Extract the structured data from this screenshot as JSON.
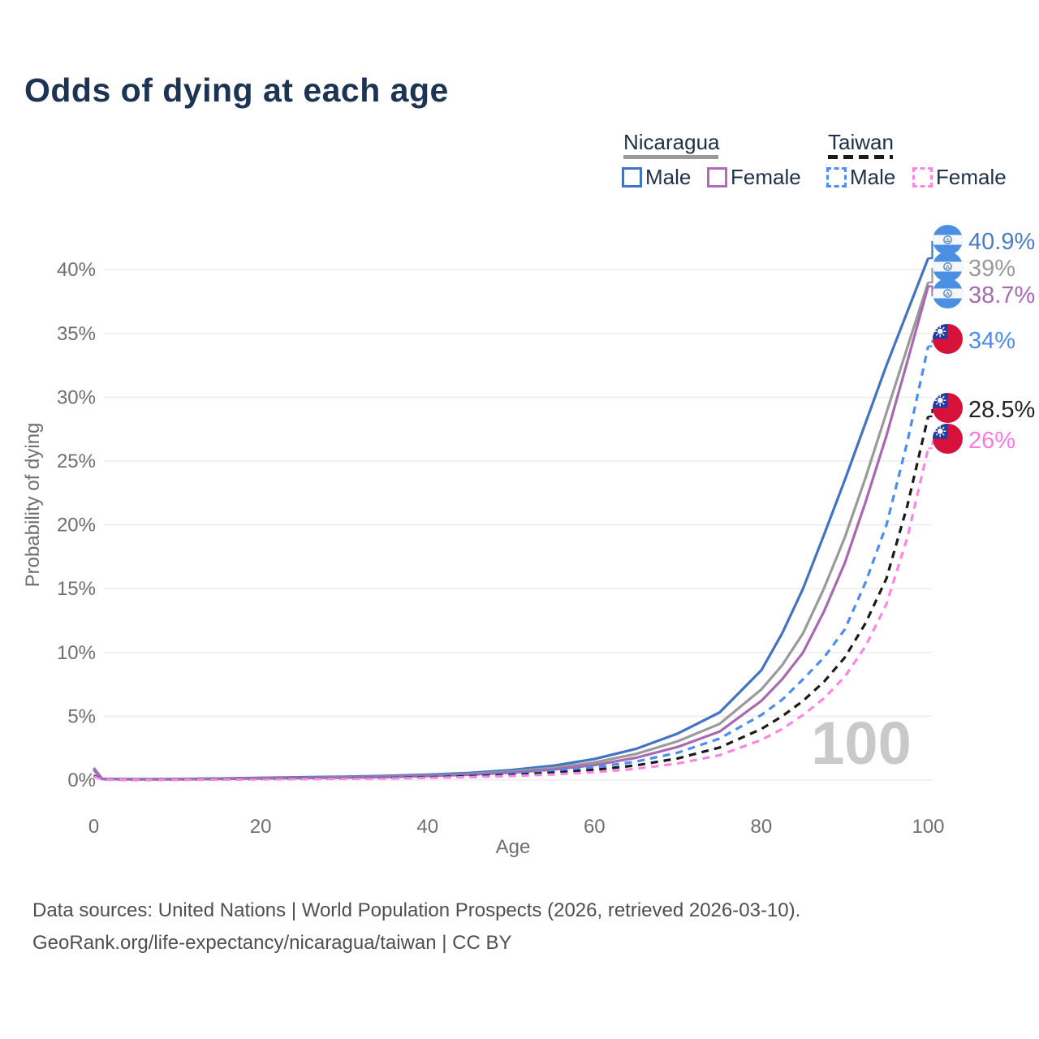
{
  "title": "Odds of dying at each age",
  "legend": {
    "groups": [
      {
        "name": "Nicaragua",
        "line_style": "solid",
        "line_color": "#9a9a9a",
        "items": [
          {
            "label": "Male",
            "color": "#4273c4"
          },
          {
            "label": "Female",
            "color": "#b06ab8"
          }
        ]
      },
      {
        "name": "Taiwan",
        "line_style": "dashed",
        "line_color": "#1a1a1a",
        "items": [
          {
            "label": "Male",
            "color": "#4b8df0"
          },
          {
            "label": "Female",
            "color": "#ff85e4"
          }
        ]
      }
    ]
  },
  "chart_data": {
    "type": "line",
    "title": "Odds of dying at each age",
    "xlabel": "Age",
    "ylabel": "Probability of dying",
    "watermark": "100",
    "grid": "horizontal",
    "legend_position": "top-right",
    "xlim": [
      0,
      100
    ],
    "ylim_pct": [
      0,
      43
    ],
    "x_ticks": [
      0,
      20,
      40,
      60,
      80,
      100
    ],
    "y_ticks": [
      {
        "value": 0,
        "label": "0%"
      },
      {
        "value": 5,
        "label": "5%"
      },
      {
        "value": 10,
        "label": "10%"
      },
      {
        "value": 15,
        "label": "15%"
      },
      {
        "value": 20,
        "label": "20%"
      },
      {
        "value": 25,
        "label": "25%"
      },
      {
        "value": 30,
        "label": "30%"
      },
      {
        "value": 35,
        "label": "35%"
      },
      {
        "value": 40,
        "label": "40%"
      }
    ],
    "x": [
      0,
      1,
      5,
      10,
      15,
      20,
      25,
      30,
      35,
      40,
      45,
      50,
      55,
      60,
      65,
      70,
      75,
      80,
      82.5,
      85,
      87.5,
      90,
      92.5,
      95,
      97.5,
      100
    ],
    "series": [
      {
        "name": "Nicaragua Male",
        "country": "Nicaragua",
        "sex": "Male",
        "color": "#4273c4",
        "dashed": false,
        "flag": "nicaragua",
        "end_value": 40.9,
        "end_label": "40.9%",
        "label_color": "#4a7cc7",
        "values": [
          0.95,
          0.1,
          0.07,
          0.08,
          0.12,
          0.18,
          0.22,
          0.27,
          0.33,
          0.42,
          0.56,
          0.78,
          1.12,
          1.65,
          2.45,
          3.65,
          5.3,
          8.6,
          11.5,
          15.0,
          19.2,
          23.5,
          28.0,
          32.5,
          36.7,
          40.9
        ]
      },
      {
        "name": "Nicaragua Both sexes",
        "country": "Nicaragua",
        "sex": "Both",
        "color": "#9a9a9a",
        "dashed": false,
        "flag": "nicaragua",
        "end_value": 39.0,
        "end_label": "39%",
        "label_color": "#9a9a9a",
        "values": [
          0.88,
          0.09,
          0.06,
          0.07,
          0.1,
          0.15,
          0.18,
          0.22,
          0.27,
          0.36,
          0.48,
          0.67,
          0.95,
          1.38,
          2.05,
          3.05,
          4.4,
          7.1,
          9.0,
          11.5,
          15.0,
          19.0,
          23.7,
          28.8,
          33.9,
          39.0
        ]
      },
      {
        "name": "Nicaragua Female",
        "country": "Nicaragua",
        "sex": "Female",
        "color": "#a968b2",
        "dashed": false,
        "flag": "nicaragua",
        "end_value": 38.7,
        "end_label": "38.7%",
        "label_color": "#a968b2",
        "values": [
          0.8,
          0.08,
          0.05,
          0.06,
          0.09,
          0.13,
          0.16,
          0.19,
          0.23,
          0.31,
          0.42,
          0.58,
          0.82,
          1.18,
          1.75,
          2.6,
          3.8,
          6.2,
          7.9,
          10.0,
          13.2,
          17.0,
          21.8,
          27.0,
          32.8,
          38.7
        ]
      },
      {
        "name": "Taiwan Male",
        "country": "Taiwan",
        "sex": "Male",
        "color": "#4b8df0",
        "dashed": true,
        "flag": "taiwan",
        "end_value": 34.0,
        "end_label": "34%",
        "label_color": "#4b8df0",
        "values": [
          0.38,
          0.05,
          0.03,
          0.04,
          0.07,
          0.1,
          0.12,
          0.15,
          0.19,
          0.26,
          0.36,
          0.52,
          0.72,
          1.0,
          1.45,
          2.15,
          3.25,
          5.1,
          6.3,
          7.9,
          9.6,
          11.8,
          15.5,
          20.0,
          26.5,
          34.0
        ]
      },
      {
        "name": "Taiwan Both sexes",
        "country": "Taiwan",
        "sex": "Both",
        "color": "#1a1a1a",
        "dashed": true,
        "flag": "taiwan",
        "end_value": 28.5,
        "end_label": "28.5%",
        "label_color": "#222222",
        "values": [
          0.33,
          0.04,
          0.02,
          0.03,
          0.05,
          0.08,
          0.1,
          0.12,
          0.15,
          0.21,
          0.29,
          0.41,
          0.57,
          0.8,
          1.15,
          1.7,
          2.55,
          4.0,
          5.0,
          6.2,
          7.7,
          9.6,
          12.3,
          15.8,
          21.5,
          28.5
        ]
      },
      {
        "name": "Taiwan Female",
        "country": "Taiwan",
        "sex": "Female",
        "color": "#ff85e4",
        "dashed": true,
        "flag": "taiwan",
        "end_value": 26.0,
        "end_label": "26%",
        "label_color": "#ff78e0",
        "values": [
          0.28,
          0.03,
          0.02,
          0.02,
          0.04,
          0.06,
          0.08,
          0.1,
          0.12,
          0.17,
          0.23,
          0.32,
          0.44,
          0.62,
          0.88,
          1.3,
          1.95,
          3.15,
          4.0,
          5.1,
          6.4,
          8.1,
          10.5,
          13.8,
          19.0,
          26.0
        ]
      }
    ]
  },
  "footer": {
    "line1": "Data sources: United Nations | World Population Prospects (2026, retrieved 2026-03-10).",
    "line2": "GeoRank.org/life-expectancy/nicaragua/taiwan | CC BY"
  }
}
